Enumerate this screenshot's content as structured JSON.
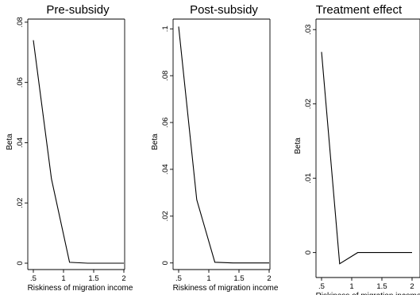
{
  "chart_data": [
    {
      "type": "line",
      "title": "Pre-subsidy",
      "xlabel": "Riskiness of migration income",
      "ylabel": "Beta",
      "x_ticks": [
        ".5",
        "1",
        "1.5",
        "2"
      ],
      "x_tick_values": [
        0.5,
        1.0,
        1.5,
        2.0
      ],
      "y_ticks": [
        "0",
        ".02",
        ".04",
        ".06",
        ".08"
      ],
      "y_tick_values": [
        0,
        0.02,
        0.04,
        0.06,
        0.08
      ],
      "xlim": [
        0.5,
        2.0
      ],
      "ylim": [
        0,
        0.08
      ],
      "grid": false,
      "series": [
        {
          "x": [
            0.5,
            0.8,
            1.1,
            1.4,
            2.0
          ],
          "y": [
            0.074,
            0.028,
            0.0003,
            0.0,
            0.0
          ]
        }
      ]
    },
    {
      "type": "line",
      "title": "Post-subsidy",
      "xlabel": "Riskiness of migration income",
      "ylabel": "Beta",
      "x_ticks": [
        ".5",
        "1",
        "1.5",
        "2"
      ],
      "x_tick_values": [
        0.5,
        1.0,
        1.5,
        2.0
      ],
      "y_ticks": [
        "0",
        ".02",
        ".04",
        ".06",
        ".08",
        ".1"
      ],
      "y_tick_values": [
        0,
        0.02,
        0.04,
        0.06,
        0.08,
        0.1
      ],
      "xlim": [
        0.5,
        2.0
      ],
      "ylim": [
        0,
        0.1
      ],
      "grid": false,
      "series": [
        {
          "x": [
            0.5,
            0.8,
            1.1,
            1.4,
            2.0
          ],
          "y": [
            0.101,
            0.027,
            0.0003,
            0.0,
            0.0
          ]
        }
      ]
    },
    {
      "type": "line",
      "title": "Treatment effect",
      "xlabel": "Riskiness of migration income",
      "ylabel": "Beta",
      "x_ticks": [
        ".5",
        "1",
        "1.5",
        "2"
      ],
      "x_tick_values": [
        0.5,
        1.0,
        1.5,
        2.0
      ],
      "y_ticks": [
        "0",
        ".01",
        ".02",
        ".03"
      ],
      "y_tick_values": [
        0,
        0.01,
        0.02,
        0.03
      ],
      "xlim": [
        0.5,
        2.0
      ],
      "ylim": [
        0,
        0.03
      ],
      "grid": false,
      "series": [
        {
          "x": [
            0.5,
            0.8,
            1.1,
            1.4,
            2.0
          ],
          "y": [
            0.027,
            -0.0015,
            0.0,
            0.0,
            0.0
          ]
        }
      ]
    }
  ]
}
